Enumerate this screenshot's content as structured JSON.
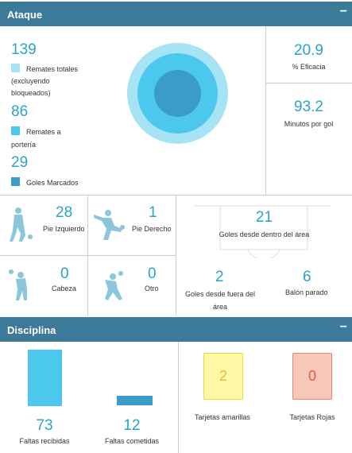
{
  "attack": {
    "title": "Ataque",
    "collapse": "−",
    "total_shots": {
      "value": "139",
      "label1": "Remates totales",
      "label2": "(excluyendo",
      "label3": "bloqueados)",
      "color": "#a6e3f5"
    },
    "on_target": {
      "value": "86",
      "label1": "Remates a",
      "label2": "portería",
      "color": "#4cc8ef"
    },
    "goals": {
      "value": "29",
      "label": "Goles Marcados",
      "color": "#3a9dc9"
    },
    "efficiency": {
      "value": "20.9",
      "label": "% Eficacia"
    },
    "minutes_per_goal": {
      "value": "93.2",
      "label": "Minutos por gol"
    },
    "left_foot": {
      "value": "28",
      "label": "Pie Izquierdo"
    },
    "right_foot": {
      "value": "1",
      "label": "Pie Derecho"
    },
    "head": {
      "value": "0",
      "label": "Cabeza"
    },
    "other": {
      "value": "0",
      "label": "Otro"
    },
    "inside_box": {
      "value": "21",
      "label": "Goles desde dentro del área"
    },
    "outside_box": {
      "value": "2",
      "label1": "Goles desde fuera del",
      "label2": "área"
    },
    "set_piece": {
      "value": "6",
      "label": "Balón parado"
    }
  },
  "discipline": {
    "title": "Disciplina",
    "collapse": "−",
    "fouls_received": {
      "value": "73",
      "label": "Faltas recibidas"
    },
    "fouls_committed": {
      "value": "12",
      "label": "Faltas cometidas"
    },
    "yellow_cards": {
      "value": "2",
      "label": "Tarjetas amarillas",
      "color": "#fff9a6",
      "border": "#e8d84a"
    },
    "red_cards": {
      "value": "0",
      "label": "Tarjetas Rojas",
      "color": "#f7c8b8",
      "border": "#e08a72"
    }
  }
}
